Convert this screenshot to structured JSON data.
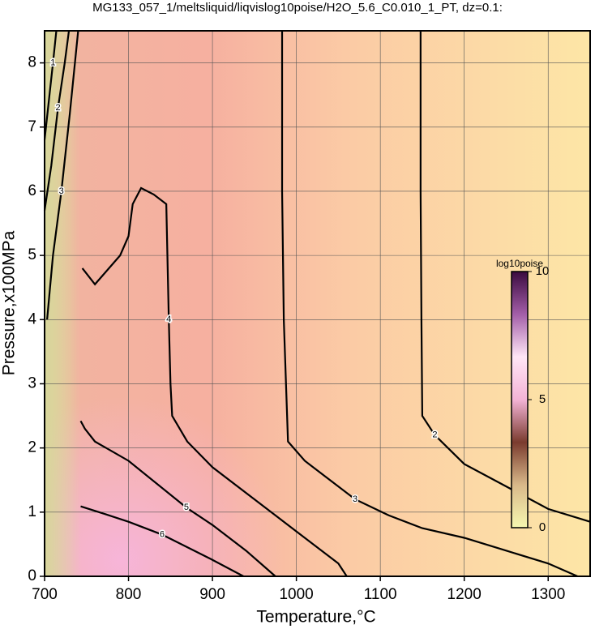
{
  "chart_data": {
    "type": "contour",
    "title": "MG133_057_1/meltsliquid/liqvislog10poise/H2O_5.6_C0.010_1_PT, dz=0.1:",
    "x_label": "Temperature,°C",
    "y_label": "Pressure,x100MPa",
    "xlim": [
      700,
      1350
    ],
    "ylim": [
      0,
      8.5
    ],
    "xticks": [
      700,
      800,
      900,
      1000,
      1100,
      1200,
      1300
    ],
    "yticks": [
      0,
      1,
      2,
      3,
      4,
      5,
      6,
      7,
      8
    ],
    "grid": true,
    "contours": [
      {
        "level": 1,
        "x": [
          700,
          705,
          710,
          714
        ],
        "y": [
          6.8,
          7.4,
          8.0,
          8.5
        ]
      },
      {
        "level": 2,
        "x": [
          700,
          708,
          716,
          724,
          729
        ],
        "y": [
          5.7,
          6.4,
          7.3,
          8.0,
          8.5
        ]
      },
      {
        "level": 3,
        "x": [
          703,
          710,
          720,
          730,
          740
        ],
        "y": [
          4.0,
          5.0,
          6.0,
          7.2,
          8.5
        ]
      },
      {
        "level": 4,
        "x": [
          745,
          760,
          770,
          790,
          800,
          805,
          815,
          830,
          845,
          848,
          850,
          852,
          870,
          900,
          950,
          1000,
          1050,
          1060
        ],
        "y": [
          4.8,
          4.55,
          4.7,
          5.0,
          5.3,
          5.8,
          6.05,
          5.95,
          5.8,
          4.0,
          3.0,
          2.5,
          2.1,
          1.7,
          1.2,
          0.7,
          0.2,
          0.0
        ]
      },
      {
        "level": 3,
        "x": [
          983,
          983,
          984,
          985,
          990,
          1010,
          1040,
          1070,
          1110,
          1150,
          1200,
          1250,
          1300,
          1335
        ],
        "y": [
          8.5,
          6.0,
          5.0,
          4.0,
          2.1,
          1.8,
          1.5,
          1.2,
          0.95,
          0.75,
          0.6,
          0.4,
          0.2,
          0.0
        ]
      },
      {
        "level": 2,
        "x": [
          1148,
          1148,
          1149,
          1150,
          1165,
          1200,
          1250,
          1300,
          1350
        ],
        "y": [
          8.5,
          6.0,
          4.0,
          2.5,
          2.2,
          1.75,
          1.4,
          1.05,
          0.85
        ]
      },
      {
        "level": 5,
        "x": [
          743,
          748,
          760,
          800,
          869,
          900,
          940,
          975
        ],
        "y": [
          2.42,
          2.3,
          2.1,
          1.8,
          1.07,
          0.8,
          0.4,
          0.0
        ]
      },
      {
        "level": 6,
        "x": [
          743,
          772,
          800,
          840,
          898,
          937
        ],
        "y": [
          1.09,
          0.97,
          0.85,
          0.65,
          0.27,
          0.0
        ]
      }
    ],
    "colorbar": {
      "label": "log10poise",
      "lim": [
        0,
        10
      ],
      "ticks": [
        0,
        5,
        10
      ],
      "colors": [
        "#f6f7b0",
        "#d9b98a",
        "#7a3b2e",
        "#f3b3d6",
        "#ffe6f6",
        "#a35ea8",
        "#3a0a3f"
      ]
    }
  }
}
